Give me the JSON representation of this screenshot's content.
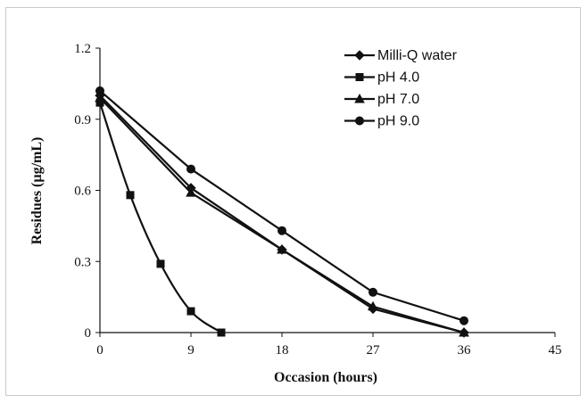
{
  "chart_data": {
    "type": "line",
    "title": "",
    "xlabel": "Occasion (hours)",
    "ylabel": "Residues (µg/mL)",
    "xlim": [
      0,
      45
    ],
    "ylim": [
      0,
      1.2
    ],
    "x_ticks": [
      "0",
      "9",
      "18",
      "27",
      "36",
      "45"
    ],
    "y_ticks": [
      "0",
      "0.3",
      "0.6",
      "0.9",
      "1.2"
    ],
    "grid": false,
    "legend_position": "top-right",
    "series": [
      {
        "name": "Milli-Q water",
        "marker": "diamond",
        "x": [
          0,
          9,
          18,
          27,
          36
        ],
        "y": [
          1.0,
          0.61,
          0.35,
          0.1,
          0.0
        ]
      },
      {
        "name": "pH 4.0",
        "marker": "square",
        "x": [
          0,
          3,
          6,
          9,
          12
        ],
        "y": [
          0.97,
          0.58,
          0.29,
          0.09,
          0.0
        ]
      },
      {
        "name": "pH 7.0",
        "marker": "triangle",
        "x": [
          0,
          9,
          18,
          27,
          36
        ],
        "y": [
          0.99,
          0.59,
          0.35,
          0.11,
          0.0
        ]
      },
      {
        "name": "pH 9.0",
        "marker": "circle",
        "x": [
          0,
          9,
          18,
          27,
          36
        ],
        "y": [
          1.02,
          0.69,
          0.43,
          0.17,
          0.05
        ]
      }
    ]
  }
}
